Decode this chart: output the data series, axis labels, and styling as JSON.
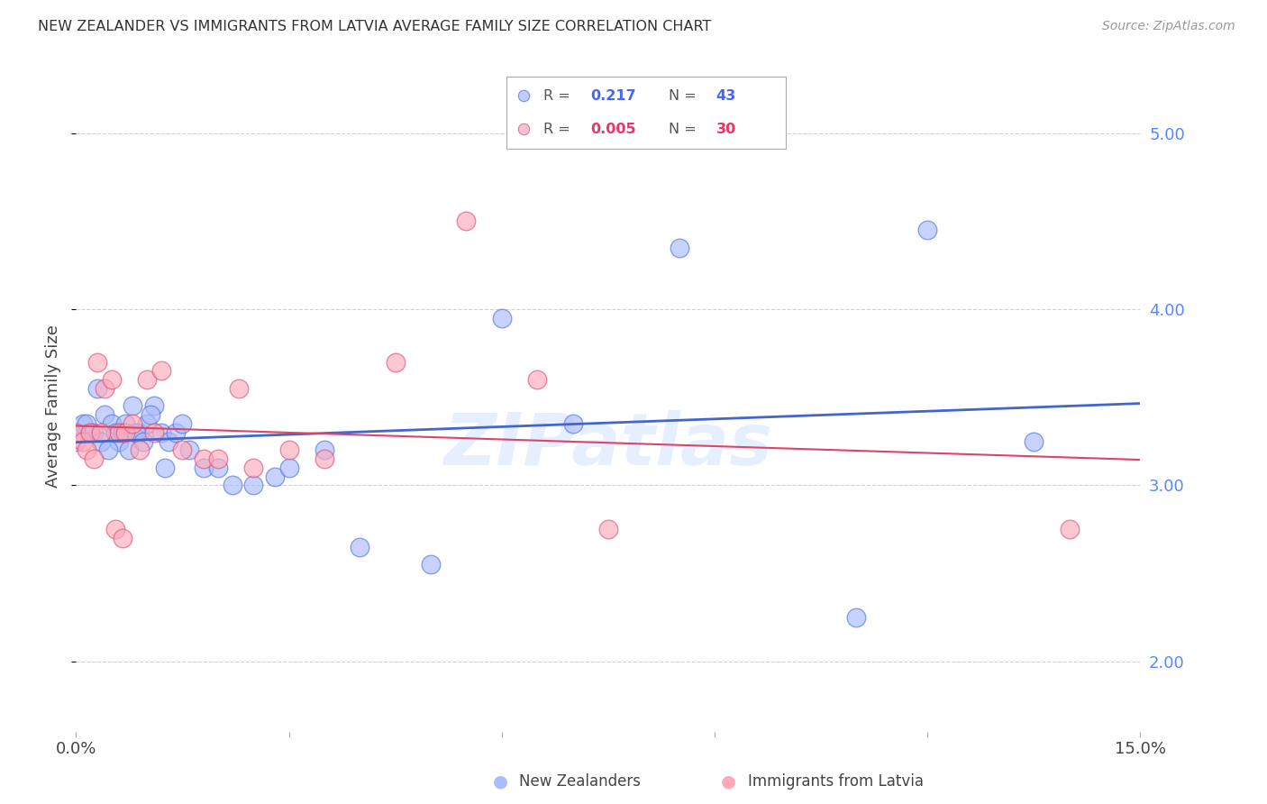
{
  "title": "NEW ZEALANDER VS IMMIGRANTS FROM LATVIA AVERAGE FAMILY SIZE CORRELATION CHART",
  "source": "Source: ZipAtlas.com",
  "ylabel": "Average Family Size",
  "right_yticks": [
    2.0,
    3.0,
    4.0,
    5.0
  ],
  "grid_color": "#cccccc",
  "blue_face": "#aabbff",
  "blue_edge": "#5577dd",
  "pink_face": "#ffaabb",
  "pink_edge": "#dd5577",
  "blue_line": "#4466cc",
  "pink_line": "#dd4466",
  "legend_R_blue": "0.217",
  "legend_N_blue": "43",
  "legend_R_pink": "0.005",
  "legend_N_pink": "30",
  "nz_x": [
    0.0,
    0.1,
    0.2,
    0.3,
    0.4,
    0.5,
    0.6,
    0.7,
    0.8,
    0.9,
    1.0,
    1.1,
    1.2,
    1.3,
    1.4,
    1.5,
    1.6,
    1.8,
    2.0,
    2.2,
    2.5,
    2.8,
    3.0,
    3.5,
    4.0,
    5.0,
    6.0,
    7.0,
    8.5,
    11.0,
    12.0,
    13.5,
    0.15,
    0.25,
    0.35,
    0.45,
    0.55,
    0.65,
    0.75,
    0.85,
    0.95,
    1.05,
    1.25
  ],
  "nz_y": [
    3.25,
    3.35,
    3.3,
    3.55,
    3.4,
    3.35,
    3.25,
    3.35,
    3.45,
    3.3,
    3.35,
    3.45,
    3.3,
    3.25,
    3.3,
    3.35,
    3.2,
    3.1,
    3.1,
    3.0,
    3.0,
    3.05,
    3.1,
    3.2,
    2.65,
    2.55,
    3.95,
    3.35,
    4.35,
    2.25,
    4.45,
    3.25,
    3.35,
    3.3,
    3.25,
    3.2,
    3.3,
    3.3,
    3.2,
    3.3,
    3.25,
    3.4,
    3.1
  ],
  "lv_x": [
    0.0,
    0.1,
    0.2,
    0.3,
    0.4,
    0.5,
    0.6,
    0.7,
    0.8,
    0.9,
    1.0,
    1.1,
    1.2,
    1.5,
    1.8,
    2.0,
    2.3,
    2.5,
    3.0,
    3.5,
    4.5,
    5.5,
    6.5,
    7.5,
    14.0,
    0.15,
    0.25,
    0.35,
    0.55,
    0.65
  ],
  "lv_y": [
    3.3,
    3.25,
    3.3,
    3.7,
    3.55,
    3.6,
    3.3,
    3.3,
    3.35,
    3.2,
    3.6,
    3.3,
    3.65,
    3.2,
    3.15,
    3.15,
    3.55,
    3.1,
    3.2,
    3.15,
    3.7,
    4.5,
    3.6,
    2.75,
    2.75,
    3.2,
    3.15,
    3.3,
    2.75,
    2.7
  ],
  "xmin": 0,
  "xmax": 15,
  "ymin": 1.6,
  "ymax": 5.3
}
